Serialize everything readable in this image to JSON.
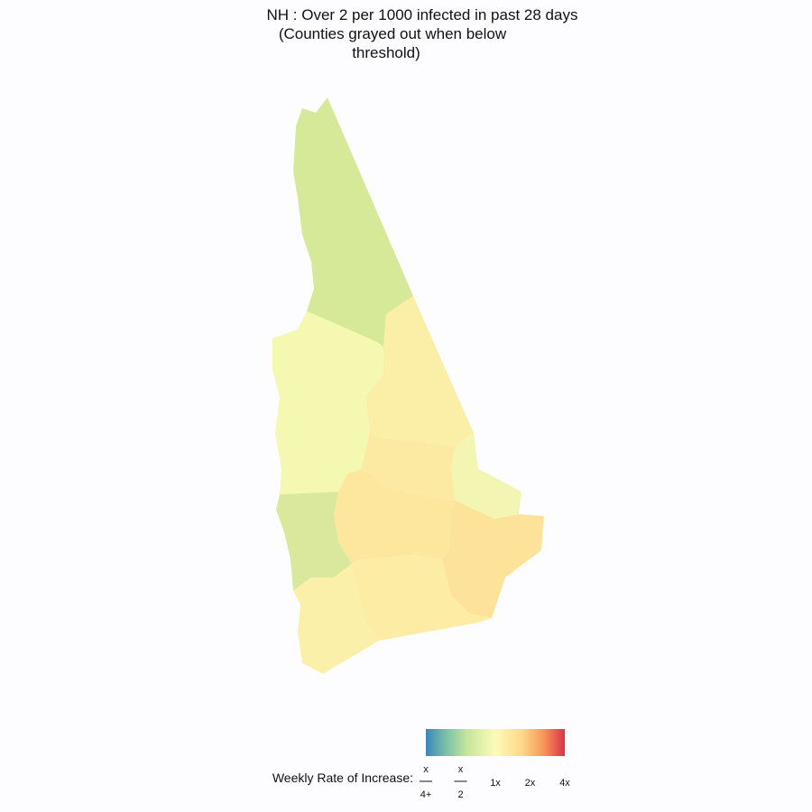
{
  "title_lines": [
    "NH : Over 2 per 1000 infected in past 28 days",
    "(Counties grayed out when below",
    "threshold)"
  ],
  "legend": {
    "label": "Weekly Rate of Increase:",
    "ticks": [
      {
        "numerator": "x",
        "denominator": "4+"
      },
      {
        "numerator": "x",
        "denominator": "2"
      },
      "1x",
      "2x",
      "4x"
    ]
  }
}
